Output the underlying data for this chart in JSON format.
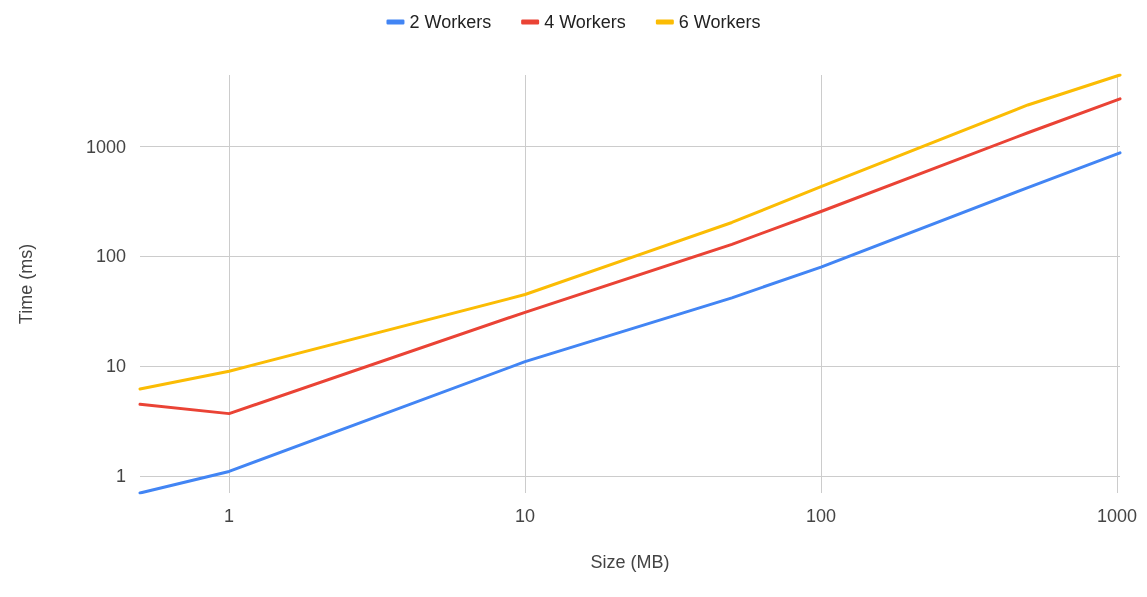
{
  "chart_data": {
    "type": "line",
    "xlabel": "Size (MB)",
    "ylabel": "Time (ms)",
    "x": [
      0.5,
      1,
      10,
      50,
      100,
      500,
      1024
    ],
    "series": [
      {
        "name": "2 Workers",
        "color": "#4285f4",
        "values": [
          0.7,
          1.1,
          11,
          42,
          80,
          424,
          880
        ]
      },
      {
        "name": "4 Workers",
        "color": "#ea4335",
        "values": [
          4.5,
          3.7,
          31,
          129,
          257,
          1340,
          2730
        ]
      },
      {
        "name": "6 Workers",
        "color": "#fbbc04",
        "values": [
          6.2,
          9,
          45,
          204,
          433,
          2400,
          4500
        ]
      }
    ],
    "log": "xy",
    "xlim": [
      0.5,
      1024
    ],
    "ylim": [
      0.7,
      4500
    ],
    "xticks": [
      1,
      10,
      100,
      1000
    ],
    "yticks": [
      1,
      10,
      100,
      1000
    ],
    "grid": true,
    "legend": "top",
    "marker": "none",
    "line_style": "solid"
  }
}
